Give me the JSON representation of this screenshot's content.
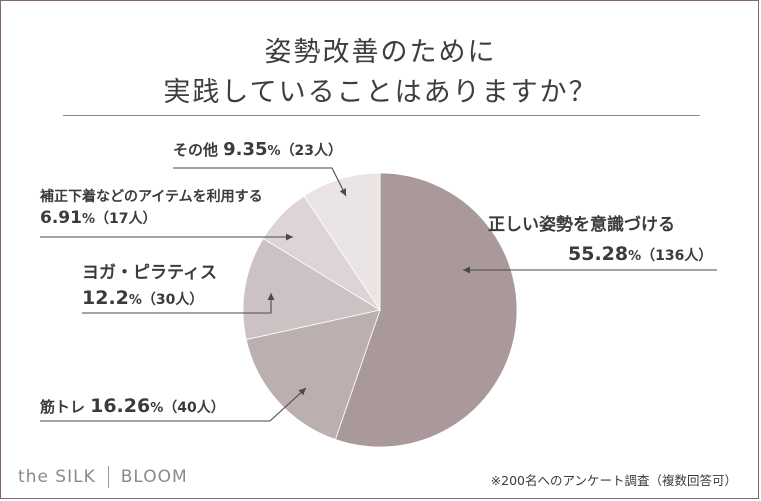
{
  "title_line1": "姿勢改善のために",
  "title_line2": "実践していることはありますか？",
  "chart_data": {
    "type": "pie",
    "title": "姿勢改善のために実践していることはありますか？",
    "slices": [
      {
        "label": "正しい姿勢を意識づける",
        "percent": 55.28,
        "percent_text": "55.28",
        "count": "（136人）",
        "color": "#a9999a"
      },
      {
        "label": "筋トレ",
        "percent": 16.26,
        "percent_text": "16.26",
        "count": "（40人）",
        "color": "#bcafb0"
      },
      {
        "label": "ヨガ・ピラティス",
        "percent": 12.2,
        "percent_text": "12.2",
        "count": "（30人）",
        "color": "#cdc2c3"
      },
      {
        "label": "補正下着などのアイテムを利用する",
        "percent": 6.91,
        "percent_text": "6.91",
        "count": "（17人）",
        "color": "#ddd4d5"
      },
      {
        "label": "その他",
        "percent": 9.35,
        "percent_text": "9.35",
        "count": "（23人）",
        "color": "#ebe4e5"
      }
    ],
    "percent_sign": "%"
  },
  "brand": {
    "left": "the SILK",
    "right": "BLOOM"
  },
  "footnote": "※200名へのアンケート調査（複数回答可）"
}
